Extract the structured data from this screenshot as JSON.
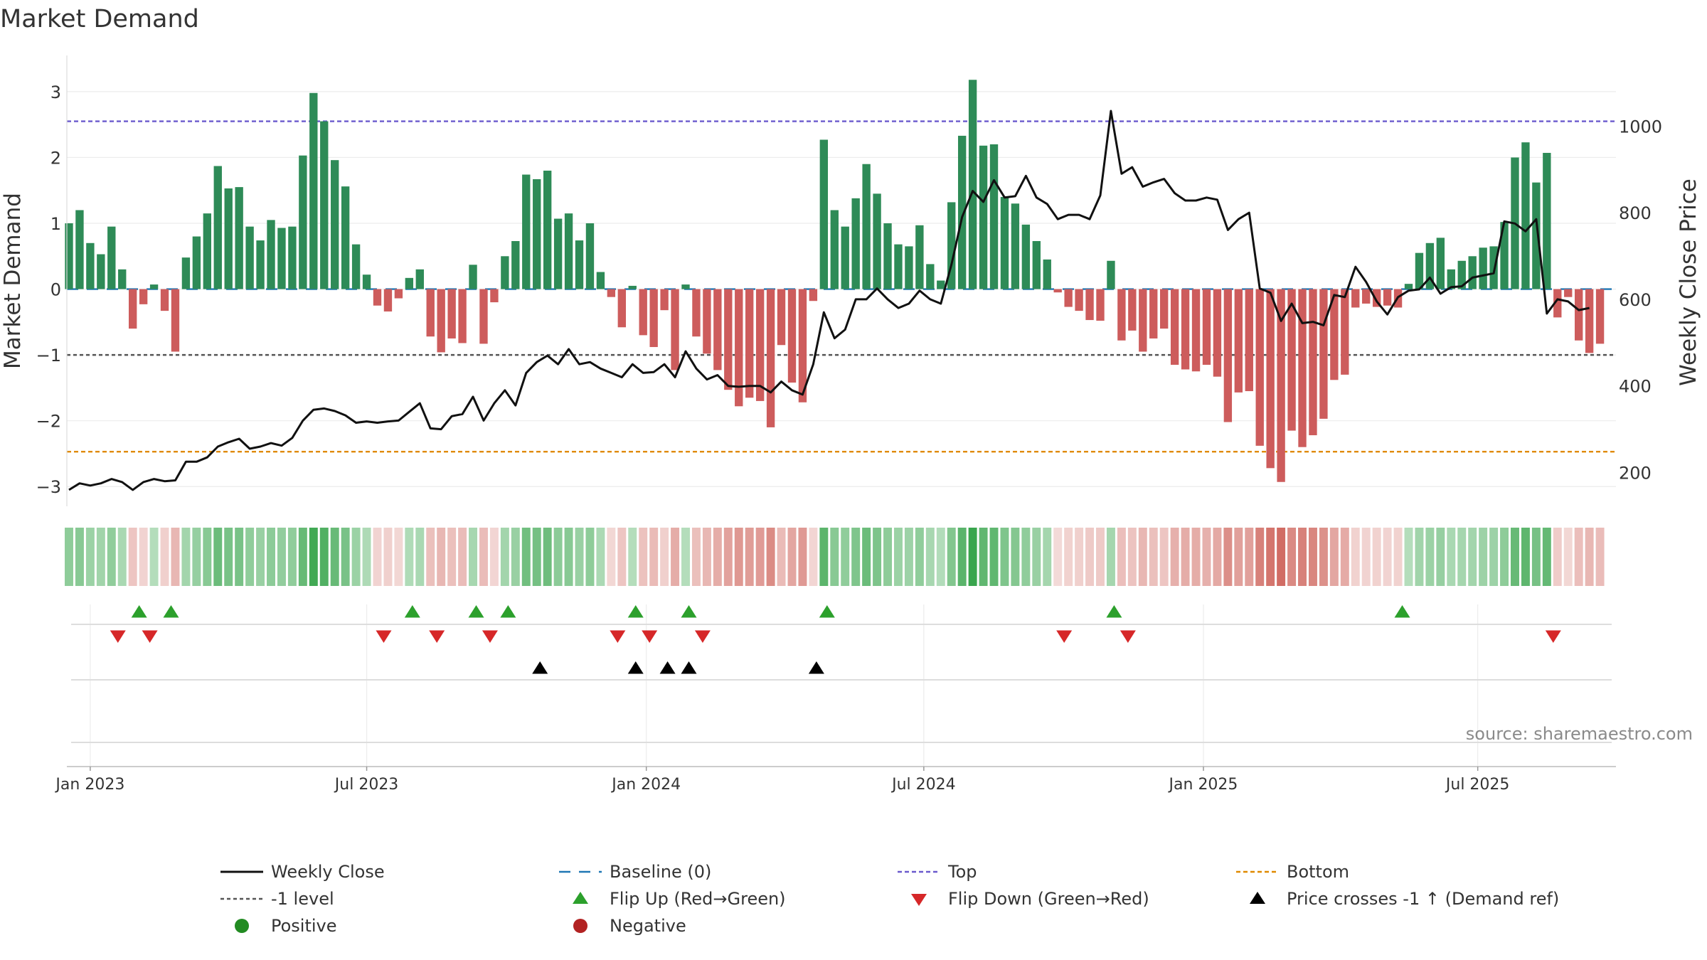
{
  "chart_data": {
    "type": "bar",
    "title": "Market Demand",
    "ylabel": "Market Demand",
    "y2label": "Weekly Close Price",
    "ylim": [
      -3.3,
      3.55
    ],
    "y2lim": [
      122,
      1163
    ],
    "yticks": [
      3,
      2,
      1,
      0,
      -1,
      -2,
      -3
    ],
    "yticklabels": [
      "3",
      "2",
      "1",
      "0",
      "−1",
      "−2",
      "−3"
    ],
    "y2ticks": [
      200,
      400,
      600,
      800,
      1000
    ],
    "y2ticklabels": [
      "200",
      "400",
      "600",
      "800",
      "1000"
    ],
    "x_range": [
      -2.2,
      143.5
    ],
    "xticks": [
      {
        "label": "Jan 2023",
        "week": 0
      },
      {
        "label": "Jul 2023",
        "week": 26
      },
      {
        "label": "Jan 2024",
        "week": 52.3
      },
      {
        "label": "Jul 2024",
        "week": 78.4
      },
      {
        "label": "Jan 2025",
        "week": 104.7
      },
      {
        "label": "Jul 2025",
        "week": 130.5
      }
    ],
    "reference_lines": {
      "top": 2.55,
      "bottom": -2.47,
      "minus_one": -1,
      "baseline": 0
    },
    "colors": {
      "positive_bar": "#2e8b57",
      "negative_bar": "#cd5c5c",
      "close_line": "#111111",
      "baseline": "#1f77b4",
      "top": "#6a5acd",
      "bottom": "#e08a00",
      "minus_one": "#555555",
      "flip_up": "#2ca02c",
      "flip_down": "#d62728",
      "cross": "#000000",
      "positive_dot": "#228b22",
      "negative_dot": "#b22222"
    },
    "series": [
      {
        "name": "Market Demand",
        "start_week": -2,
        "values": [
          1.0,
          1.2,
          0.7,
          0.53,
          0.95,
          0.3,
          -0.6,
          -0.23,
          0.07,
          -0.33,
          -0.95,
          0.48,
          0.8,
          1.15,
          1.87,
          1.53,
          1.55,
          0.95,
          0.74,
          1.05,
          0.93,
          0.95,
          2.03,
          2.98,
          2.55,
          1.96,
          1.56,
          0.68,
          0.22,
          -0.25,
          -0.34,
          -0.14,
          0.17,
          0.3,
          -0.72,
          -0.96,
          -0.75,
          -0.82,
          0.37,
          -0.83,
          -0.2,
          0.5,
          0.73,
          1.74,
          1.67,
          1.8,
          1.07,
          1.15,
          0.74,
          1.0,
          0.26,
          -0.12,
          -0.58,
          0.05,
          -0.7,
          -0.88,
          -0.32,
          -1.23,
          0.07,
          -0.72,
          -0.98,
          -1.23,
          -1.53,
          -1.78,
          -1.65,
          -1.7,
          -2.1,
          -0.85,
          -1.42,
          -1.72,
          -0.18,
          2.27,
          1.2,
          0.95,
          1.38,
          1.9,
          1.45,
          1.0,
          0.68,
          0.65,
          0.97,
          0.38,
          0.13,
          1.32,
          2.33,
          3.18,
          2.18,
          2.2,
          1.4,
          1.3,
          0.98,
          0.73,
          0.45,
          -0.05,
          -0.27,
          -0.33,
          -0.47,
          -0.48,
          0.43,
          -0.78,
          -0.63,
          -0.95,
          -0.75,
          -0.6,
          -1.15,
          -1.22,
          -1.25,
          -1.15,
          -1.33,
          -2.02,
          -1.57,
          -1.55,
          -2.38,
          -2.72,
          -2.93,
          -2.15,
          -2.4,
          -2.22,
          -1.97,
          -1.38,
          -1.3,
          -0.28,
          -0.22,
          -0.27,
          -0.25,
          -0.28,
          0.08,
          0.55,
          0.7,
          0.78,
          0.3,
          0.43,
          0.5,
          0.63,
          0.65,
          1.02,
          2.0,
          2.23,
          1.62,
          2.07,
          -0.43,
          -0.12,
          -0.78,
          -0.97,
          -0.83
        ]
      },
      {
        "name": "Weekly Close",
        "axis": "right",
        "start_week": -2,
        "values": [
          160,
          175,
          170,
          175,
          185,
          178,
          160,
          178,
          185,
          180,
          182,
          225,
          225,
          235,
          260,
          270,
          278,
          255,
          260,
          268,
          262,
          280,
          320,
          345,
          348,
          342,
          332,
          315,
          318,
          315,
          318,
          320,
          340,
          360,
          302,
          300,
          330,
          335,
          375,
          320,
          360,
          390,
          355,
          430,
          455,
          470,
          450,
          485,
          450,
          455,
          440,
          430,
          420,
          450,
          430,
          432,
          450,
          420,
          480,
          440,
          415,
          425,
          400,
          398,
          400,
          400,
          385,
          410,
          390,
          380,
          450,
          570,
          510,
          530,
          600,
          600,
          625,
          600,
          580,
          590,
          620,
          600,
          590,
          680,
          790,
          850,
          825,
          875,
          835,
          838,
          885,
          835,
          820,
          785,
          795,
          795,
          785,
          840,
          1035,
          890,
          905,
          860,
          870,
          878,
          845,
          828,
          828,
          835,
          830,
          760,
          785,
          800,
          625,
          615,
          550,
          590,
          545,
          548,
          540,
          610,
          605,
          675,
          640,
          595,
          565,
          605,
          620,
          623,
          650,
          613,
          628,
          630,
          650,
          655,
          660,
          780,
          775,
          757,
          785,
          567,
          600,
          595,
          575,
          580
        ]
      }
    ],
    "markers": {
      "flip_up_weeks": [
        4.6,
        7.6,
        30.3,
        36.3,
        39.3,
        51.3,
        56.3,
        69.3,
        96.3,
        123.4
      ],
      "flip_down_weeks": [
        2.6,
        5.6,
        27.6,
        32.6,
        37.6,
        49.6,
        52.6,
        57.6,
        91.6,
        97.6,
        137.6
      ],
      "cross_weeks": [
        42.3,
        51.3,
        54.3,
        56.3,
        68.3
      ]
    },
    "legend": {
      "placement": "bottom",
      "items": [
        {
          "label": "Weekly Close",
          "key": "close"
        },
        {
          "label": "Baseline (0)",
          "key": "baseline"
        },
        {
          "label": "Top",
          "key": "top"
        },
        {
          "label": "Bottom",
          "key": "bottom"
        },
        {
          "label": "-1 level",
          "key": "minus_one"
        },
        {
          "label": "Flip Up (Red→Green)",
          "key": "flip_up"
        },
        {
          "label": "Flip Down (Green→Red)",
          "key": "flip_down"
        },
        {
          "label": "Price crosses -1 ↑ (Demand ref)",
          "key": "cross"
        },
        {
          "label": "Positive",
          "key": "positive"
        },
        {
          "label": "Negative",
          "key": "negative"
        }
      ]
    },
    "source": "source: sharemaestro.com"
  }
}
